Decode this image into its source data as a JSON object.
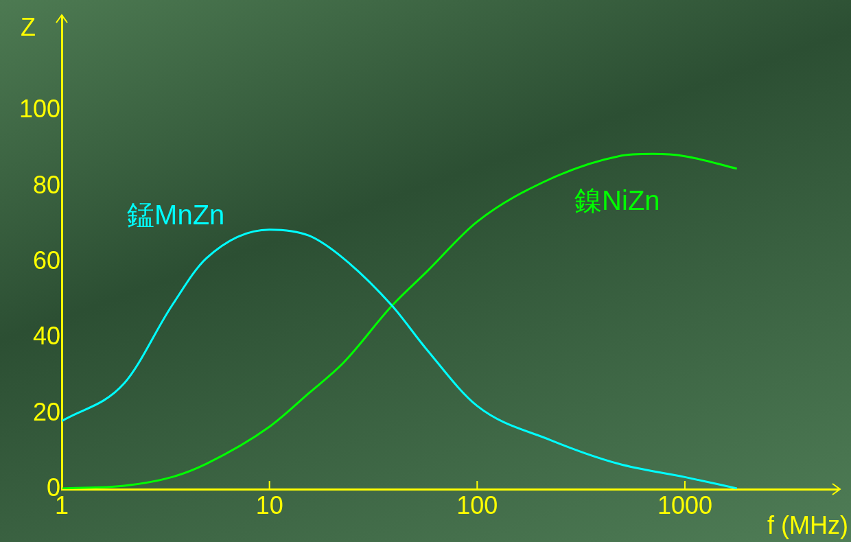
{
  "chart_data": {
    "type": "line",
    "xlabel": "f (MHz)",
    "ylabel": "Z",
    "log": "x",
    "grid": false,
    "legend": false,
    "marker": "none",
    "line_style": "solid",
    "xlim": [
      1,
      5500
    ],
    "xticks": [
      1,
      10,
      100,
      1000
    ],
    "ylim": [
      0,
      125
    ],
    "yticks": [
      0,
      20,
      40,
      60,
      80,
      100
    ],
    "series": [
      {
        "name": "錳MnZn",
        "color": "#00ffff",
        "x": [
          1,
          2,
          3.39,
          4.96,
          10,
          15.5,
          22.7,
          38.9,
          57,
          100,
          225,
          480,
          1000,
          1780
        ],
        "values": [
          18,
          28,
          48.5,
          61,
          68.6,
          67,
          61,
          48.5,
          37,
          22,
          13,
          6.7,
          3.2,
          0.2
        ]
      },
      {
        "name": "鎳NiZn",
        "color": "#00ff00",
        "x": [
          1,
          2,
          3.39,
          4.96,
          10,
          15.5,
          22.7,
          38.9,
          57,
          100,
          225,
          480,
          700,
          1000,
          1780
        ],
        "values": [
          0.2,
          0.9,
          3.2,
          6.7,
          16.5,
          25.4,
          33.4,
          48.5,
          57.4,
          70.7,
          82,
          88,
          88.6,
          88,
          84.7
        ]
      }
    ]
  }
}
